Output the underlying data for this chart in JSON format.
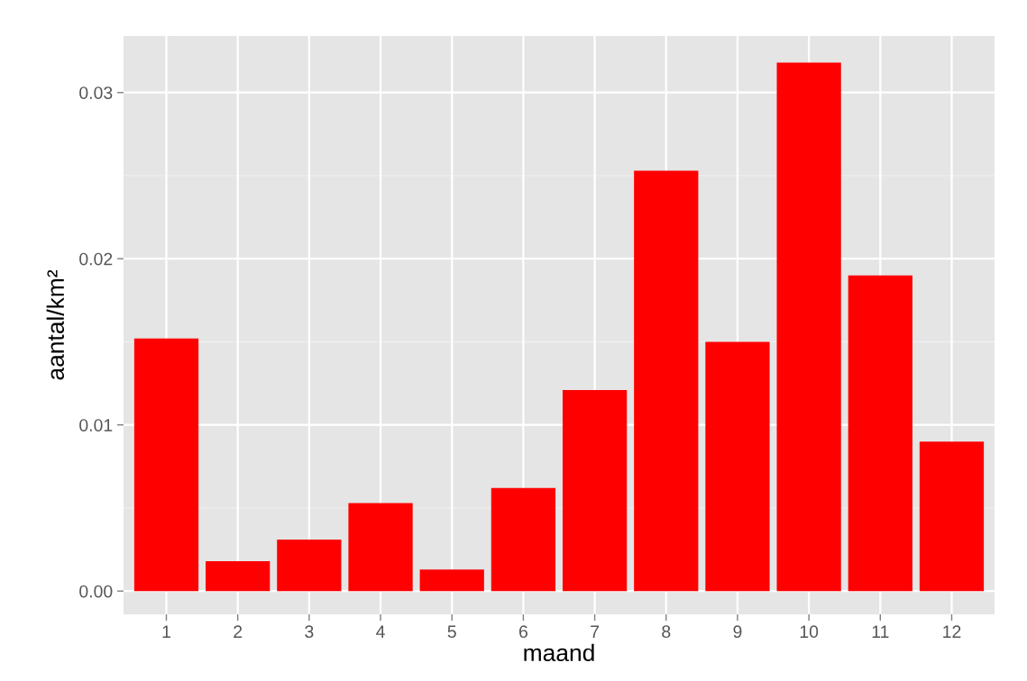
{
  "chart_data": {
    "type": "bar",
    "xlabel": "maand",
    "ylabel": "aantal/km²",
    "categories": [
      "1",
      "2",
      "3",
      "4",
      "5",
      "6",
      "7",
      "8",
      "9",
      "10",
      "11",
      "12"
    ],
    "values": [
      0.0152,
      0.0018,
      0.0031,
      0.0053,
      0.0013,
      0.0062,
      0.0121,
      0.0253,
      0.015,
      0.0318,
      0.019,
      0.009
    ],
    "color": "#ff0000",
    "ylim": [
      -0.0014,
      0.0334
    ],
    "yticks": [
      {
        "value": 0,
        "label": "0.00"
      },
      {
        "value": 0.01,
        "label": "0.01"
      },
      {
        "value": 0.02,
        "label": "0.02"
      },
      {
        "value": 0.03,
        "label": "0.03"
      }
    ],
    "grid": true,
    "legend": false
  }
}
